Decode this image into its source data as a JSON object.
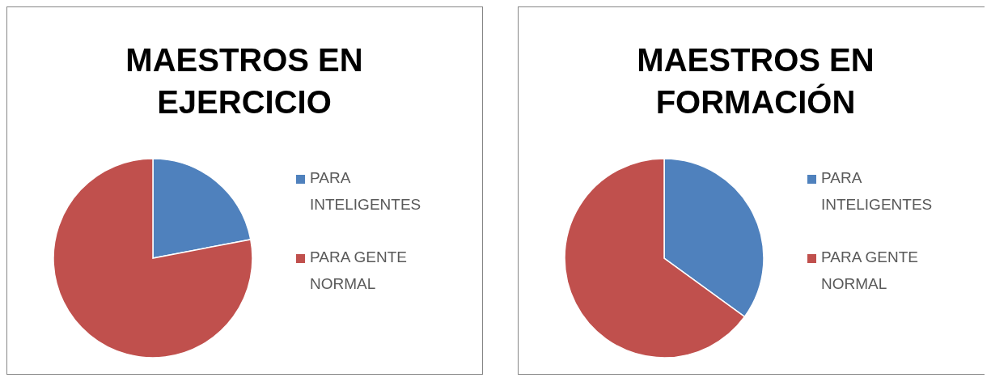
{
  "chart_data": [
    {
      "type": "pie",
      "title": "MAESTROS EN EJERCICIO",
      "categories": [
        "PARA INTELIGENTES",
        "PARA GENTE NORMAL"
      ],
      "values": [
        22,
        78
      ],
      "colors": [
        "#4f81bd",
        "#c0504d"
      ],
      "legend": "right"
    },
    {
      "type": "pie",
      "title": "MAESTROS EN FORMACIÓN",
      "categories": [
        "PARA INTELIGENTES",
        "PARA GENTE NORMAL"
      ],
      "values": [
        35,
        65
      ],
      "colors": [
        "#4f81bd",
        "#c0504d"
      ],
      "legend": "right"
    }
  ]
}
